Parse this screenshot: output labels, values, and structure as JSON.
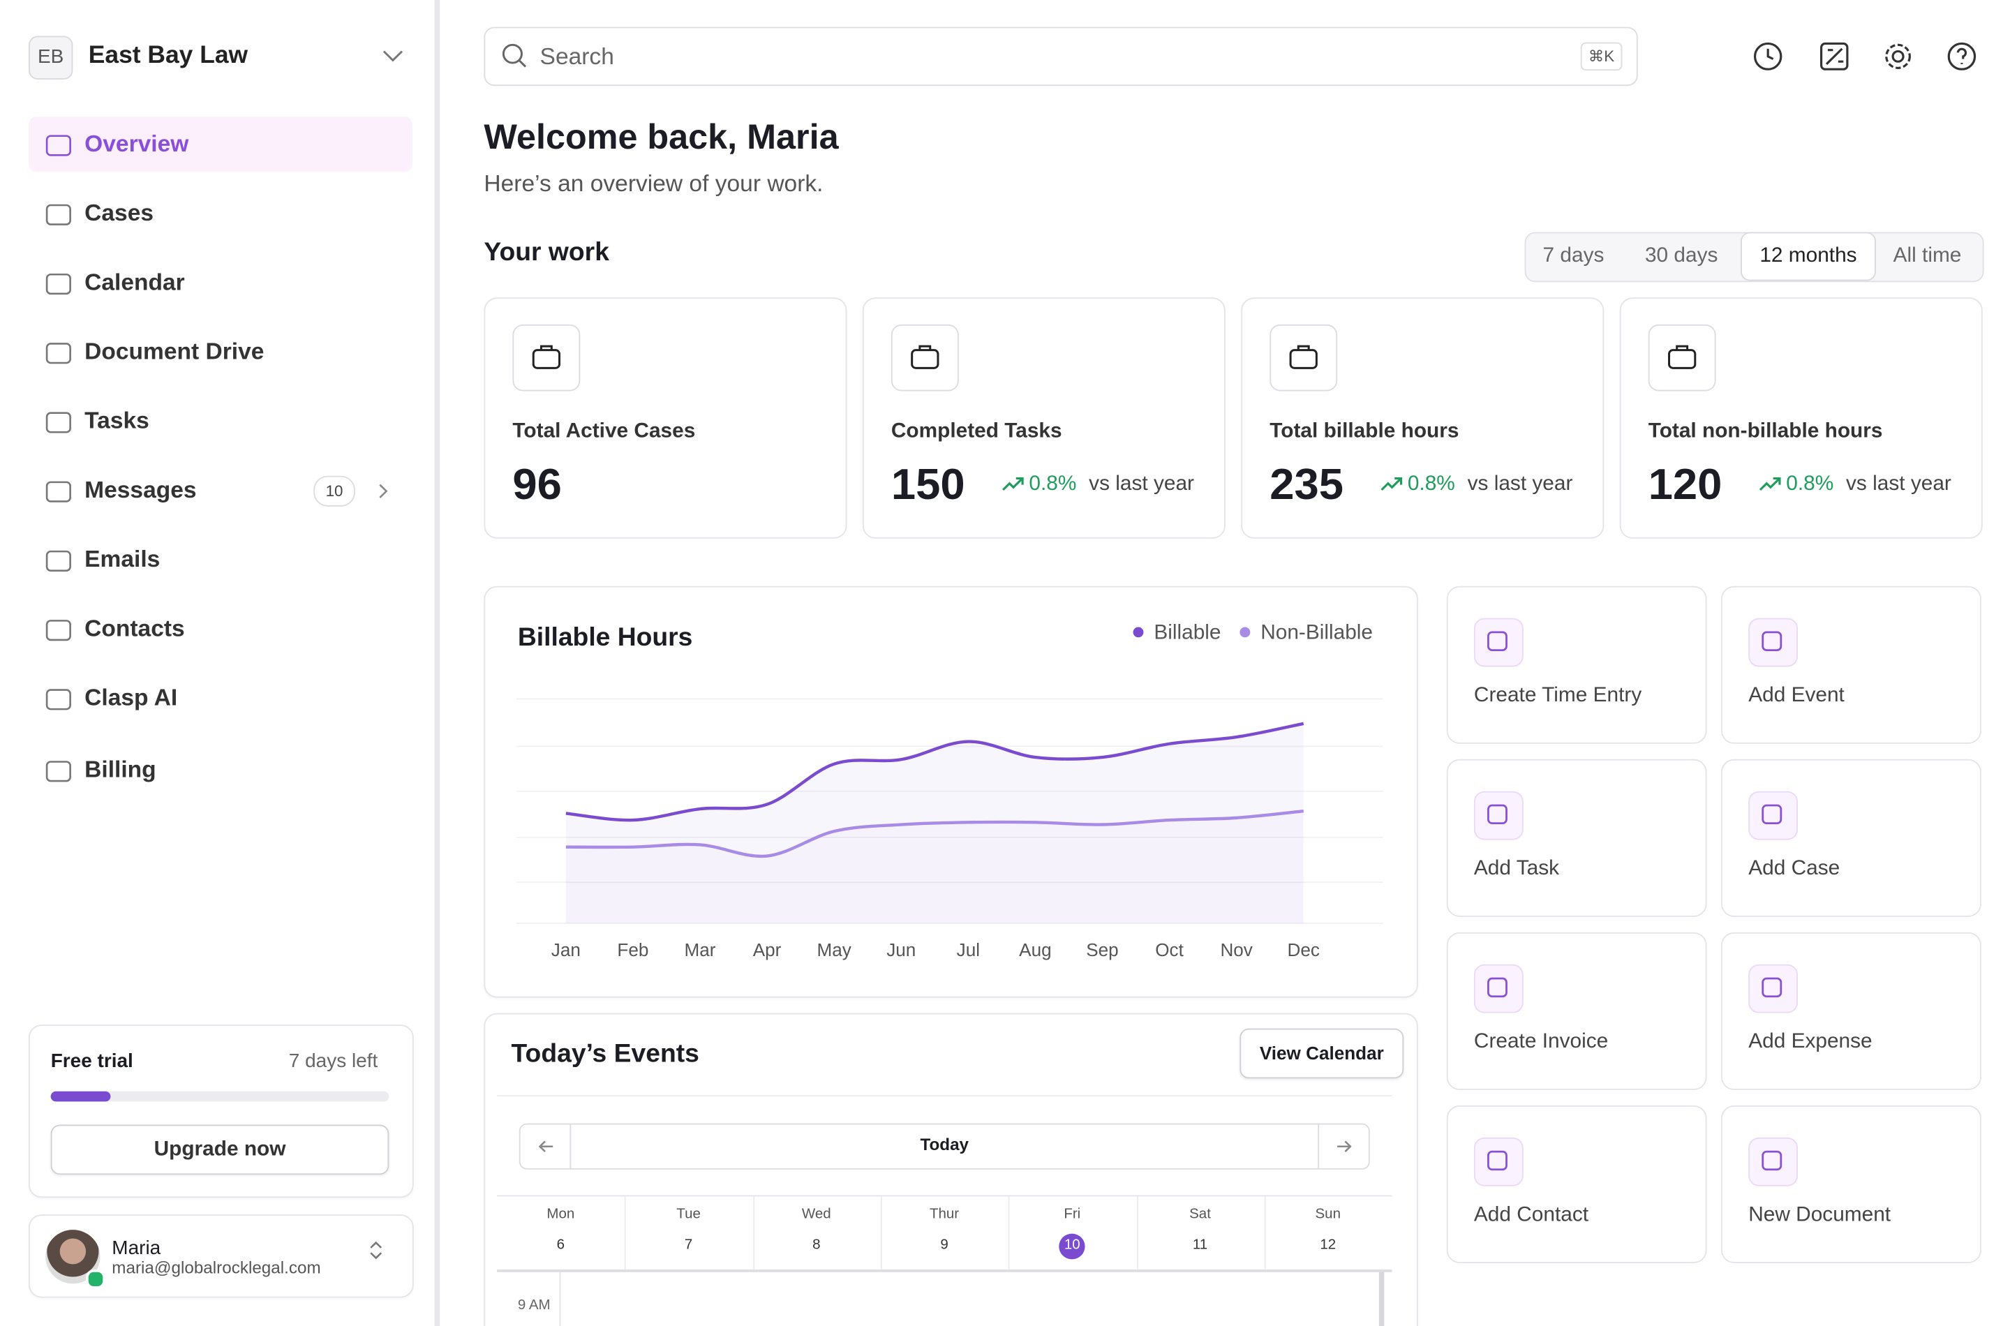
{
  "sidebar": {
    "org": {
      "initials": "EB",
      "name": "East Bay Law"
    },
    "nav": [
      "Overview",
      "Cases",
      "Calendar",
      "Document Drive",
      "Tasks",
      "Messages",
      "Emails",
      "Contacts",
      "Clasp AI",
      "Billing"
    ],
    "messages_badge": "10",
    "trial": {
      "title": "Free trial",
      "remaining": "7 days left",
      "button": "Upgrade now"
    },
    "user": {
      "name": "Maria",
      "email": "maria@globalrocklegal.com"
    }
  },
  "search": {
    "placeholder": "Search",
    "shortcut": "⌘K"
  },
  "header": {
    "title": "Welcome back, Maria",
    "subtitle": "Here’s an overview of your work."
  },
  "work": {
    "title": "Your work",
    "ranges": [
      "7 days",
      "30 days",
      "12 months",
      "All time"
    ],
    "stats": [
      {
        "label": "Total Active Cases",
        "value": "96"
      },
      {
        "label": "Completed Tasks",
        "value": "150",
        "change": "0.8%",
        "note": "vs last year"
      },
      {
        "label": "Total billable hours",
        "value": "235",
        "change": "0.8%",
        "note": "vs last year"
      },
      {
        "label": "Total non-billable hours",
        "value": "120",
        "change": "0.8%",
        "note": "vs last year"
      }
    ]
  },
  "chart_data": {
    "type": "line",
    "title": "Billable Hours",
    "categories": [
      "Jan",
      "Feb",
      "Mar",
      "Apr",
      "May",
      "Jun",
      "Jul",
      "Aug",
      "Sep",
      "Oct",
      "Nov",
      "Dec"
    ],
    "series": [
      {
        "name": "Billable",
        "color": "#7a4bd0",
        "values": [
          49,
          46,
          51,
          53,
          71,
          73,
          81,
          74,
          74,
          80,
          83,
          89
        ]
      },
      {
        "name": "Non-Billable",
        "color": "#a88be6",
        "values": [
          34,
          34,
          35,
          30,
          41,
          44,
          45,
          45,
          44,
          46,
          47,
          50
        ]
      }
    ],
    "ylim": [
      0,
      100
    ]
  },
  "actions": [
    "Create Time Entry",
    "Add Event",
    "Add Task",
    "Add Case",
    "Create Invoice",
    "Add Expense",
    "Add Contact",
    "New Document"
  ],
  "events": {
    "title": "Today’s Events",
    "button": "View Calendar",
    "today": "Today",
    "days": [
      {
        "name": "Mon",
        "date": "6"
      },
      {
        "name": "Tue",
        "date": "7"
      },
      {
        "name": "Wed",
        "date": "8"
      },
      {
        "name": "Thur",
        "date": "9"
      },
      {
        "name": "Fri",
        "date": "10"
      },
      {
        "name": "Sat",
        "date": "11"
      },
      {
        "name": "Sun",
        "date": "12"
      }
    ],
    "time": "9 AM"
  }
}
